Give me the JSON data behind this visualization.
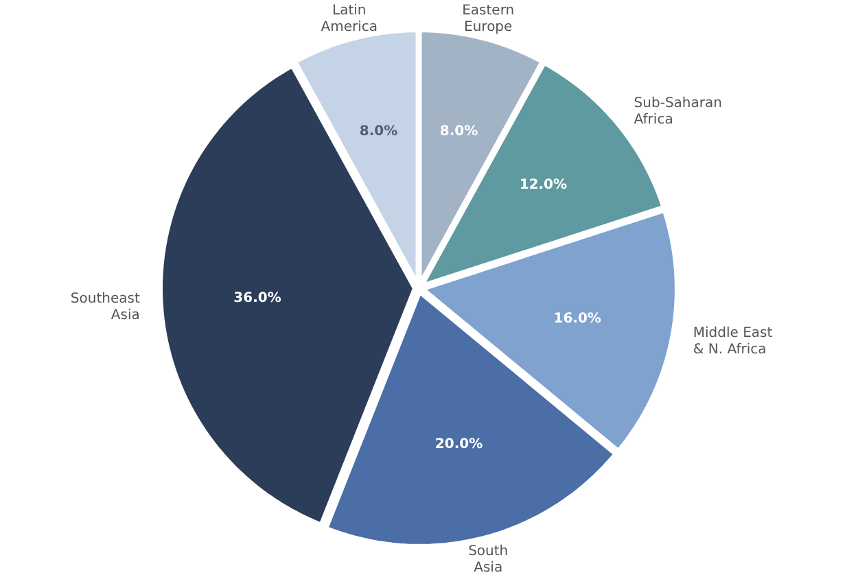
{
  "chart_data": {
    "type": "pie",
    "categories": [
      "Eastern\nEurope",
      "Sub-Saharan\nAfrica",
      "Middle East\n& N. Africa",
      "South\nAsia",
      "Southeast\nAsia",
      "Latin\nAmerica"
    ],
    "values": [
      8,
      12,
      16,
      20,
      36,
      8
    ],
    "value_labels": [
      "8.0%",
      "12.0%",
      "16.0%",
      "20.0%",
      "36.0%",
      "8.0%"
    ],
    "colors": [
      "#a3b3c6",
      "#5e9aa0",
      "#7fa2cf",
      "#4a6ea5",
      "#2b3d58",
      "#c5d3e6"
    ]
  }
}
